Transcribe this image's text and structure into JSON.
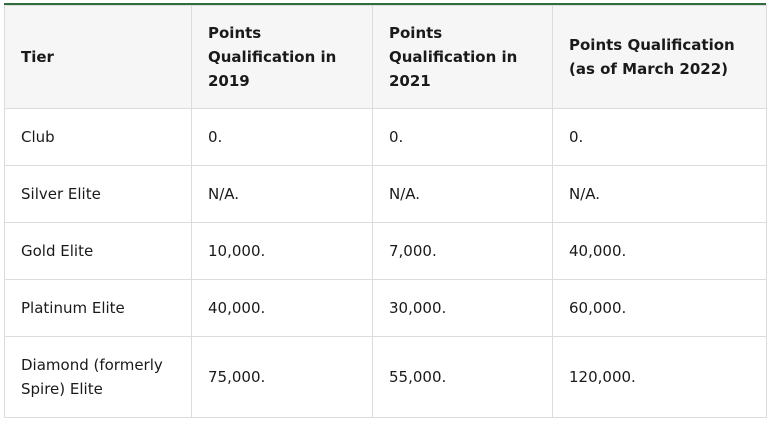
{
  "table": {
    "header": [
      "Tier",
      "Points Qualification in 2019",
      "Points Qualification in 2021",
      "Points Qualification (as of March 2022)"
    ],
    "rows": [
      [
        "Club",
        "0.",
        "0.",
        "0."
      ],
      [
        "Silver Elite",
        "N/A.",
        "N/A.",
        "N/A."
      ],
      [
        "Gold Elite",
        "10,000.",
        "7,000.",
        "40,000."
      ],
      [
        "Platinum Elite",
        "40,000.",
        "30,000.",
        "60,000."
      ],
      [
        "Diamond (formerly Spire) Elite",
        "75,000.",
        "55,000.",
        "120,000."
      ]
    ]
  }
}
